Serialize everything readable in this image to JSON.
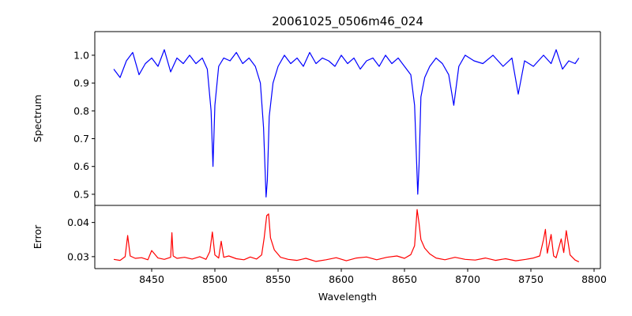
{
  "chart_data": [
    {
      "type": "line",
      "title": "20061025_0506m46_024",
      "ylabel": "Spectrum",
      "xlabel": "",
      "xlim": [
        8405,
        8805
      ],
      "ylim": [
        0.46,
        1.085
      ],
      "yticks": [
        0.5,
        0.6,
        0.7,
        0.8,
        0.9,
        1.0
      ],
      "ytick_labels": [
        "0.5",
        "0.6",
        "0.7",
        "0.8",
        "0.9",
        "1.0"
      ],
      "grid": false,
      "series": [
        {
          "color": "#0000ff",
          "x": [
            8420,
            8425,
            8430,
            8435,
            8440,
            8445,
            8450,
            8455,
            8460,
            8465,
            8470,
            8475,
            8480,
            8485,
            8490,
            8494,
            8497,
            8498.5,
            8500,
            8503,
            8507,
            8512,
            8517,
            8522,
            8527,
            8532,
            8536,
            8538.5,
            8540.5,
            8541.5,
            8543,
            8546,
            8550,
            8555,
            8560,
            8565,
            8570,
            8575,
            8580,
            8585,
            8590,
            8595,
            8600,
            8605,
            8610,
            8615,
            8620,
            8625,
            8630,
            8635,
            8640,
            8645,
            8650,
            8655,
            8658,
            8660.5,
            8661.5,
            8663,
            8666,
            8670,
            8675,
            8680,
            8685,
            8689,
            8693,
            8698,
            8705,
            8712,
            8720,
            8728,
            8735,
            8740,
            8745,
            8752,
            8760,
            8766,
            8770,
            8775,
            8780,
            8785,
            8788
          ],
          "values": [
            0.95,
            0.92,
            0.98,
            1.01,
            0.93,
            0.97,
            0.99,
            0.96,
            1.02,
            0.94,
            0.99,
            0.97,
            1.0,
            0.97,
            0.99,
            0.95,
            0.8,
            0.6,
            0.82,
            0.96,
            0.99,
            0.98,
            1.01,
            0.97,
            0.99,
            0.96,
            0.9,
            0.74,
            0.49,
            0.55,
            0.78,
            0.9,
            0.96,
            1.0,
            0.97,
            0.99,
            0.96,
            1.01,
            0.97,
            0.99,
            0.98,
            0.96,
            1.0,
            0.97,
            0.99,
            0.95,
            0.98,
            0.99,
            0.96,
            1.0,
            0.97,
            0.99,
            0.96,
            0.93,
            0.82,
            0.5,
            0.6,
            0.85,
            0.92,
            0.96,
            0.99,
            0.97,
            0.93,
            0.82,
            0.96,
            1.0,
            0.98,
            0.97,
            1.0,
            0.96,
            0.99,
            0.86,
            0.98,
            0.96,
            1.0,
            0.97,
            1.02,
            0.95,
            0.98,
            0.97,
            0.99
          ]
        }
      ]
    },
    {
      "type": "line",
      "title": "",
      "ylabel": "Error",
      "xlabel": "Wavelength",
      "xlim": [
        8405,
        8805
      ],
      "ylim": [
        0.0265,
        0.045
      ],
      "yticks": [
        0.03,
        0.04
      ],
      "ytick_labels": [
        "0.03",
        "0.04"
      ],
      "xticks": [
        8450,
        8500,
        8550,
        8600,
        8650,
        8700,
        8750,
        8800
      ],
      "xtick_labels": [
        "8450",
        "8500",
        "8550",
        "8600",
        "8650",
        "8700",
        "8750",
        "8800"
      ],
      "grid": false,
      "series": [
        {
          "color": "#ff0000",
          "x": [
            8420,
            8425,
            8429,
            8431,
            8433,
            8437,
            8442,
            8447,
            8450,
            8455,
            8460,
            8465,
            8466,
            8467,
            8470,
            8476,
            8482,
            8488,
            8493,
            8496,
            8498,
            8500,
            8503,
            8505,
            8507,
            8511,
            8517,
            8523,
            8528,
            8533,
            8537,
            8539,
            8541,
            8542.5,
            8544,
            8547,
            8552,
            8558,
            8565,
            8572,
            8580,
            8588,
            8596,
            8604,
            8612,
            8620,
            8628,
            8636,
            8644,
            8650,
            8655,
            8658,
            8660,
            8661.5,
            8663,
            8666,
            8670,
            8675,
            8682,
            8690,
            8698,
            8706,
            8714,
            8722,
            8730,
            8738,
            8746,
            8752,
            8757,
            8760,
            8761.5,
            8763,
            8766,
            8768,
            8770,
            8774,
            8776,
            8778,
            8781,
            8785,
            8788
          ],
          "values": [
            0.0292,
            0.0289,
            0.03,
            0.0362,
            0.0302,
            0.0295,
            0.0297,
            0.0291,
            0.0318,
            0.0296,
            0.0292,
            0.0298,
            0.037,
            0.0302,
            0.0295,
            0.0298,
            0.0293,
            0.03,
            0.0292,
            0.0315,
            0.0372,
            0.0305,
            0.0296,
            0.0345,
            0.0298,
            0.0302,
            0.0294,
            0.0291,
            0.0299,
            0.0293,
            0.0305,
            0.0355,
            0.042,
            0.0425,
            0.0355,
            0.032,
            0.0298,
            0.0292,
            0.0289,
            0.0295,
            0.0286,
            0.0291,
            0.0297,
            0.0288,
            0.0296,
            0.0299,
            0.0291,
            0.0298,
            0.0302,
            0.0295,
            0.0306,
            0.0332,
            0.0438,
            0.0398,
            0.035,
            0.0325,
            0.0308,
            0.0296,
            0.0291,
            0.0298,
            0.0292,
            0.029,
            0.0296,
            0.0289,
            0.0294,
            0.0288,
            0.0292,
            0.0296,
            0.0302,
            0.035,
            0.038,
            0.031,
            0.0365,
            0.0302,
            0.0297,
            0.0352,
            0.0312,
            0.0376,
            0.0305,
            0.029,
            0.0285
          ]
        }
      ]
    }
  ]
}
